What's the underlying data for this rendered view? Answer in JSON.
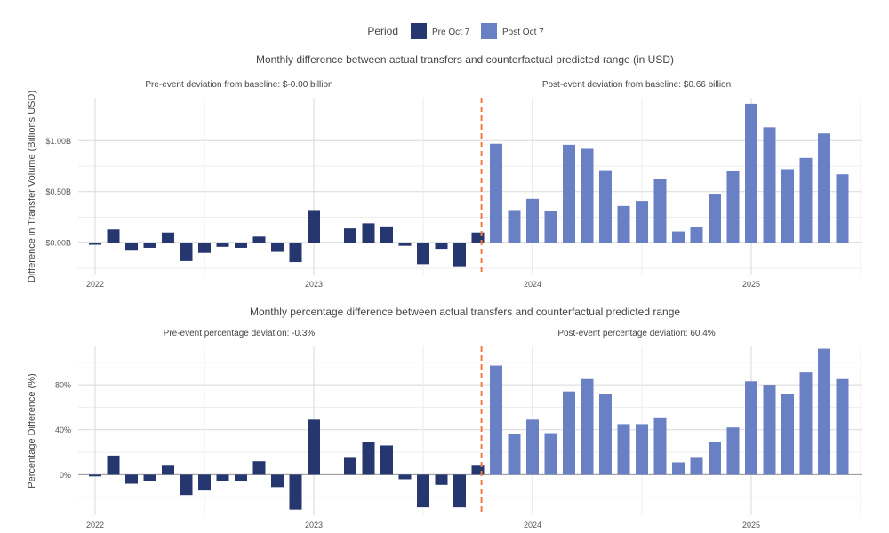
{
  "legend": {
    "title": "Period",
    "items": [
      {
        "label": "Pre Oct 7",
        "color": "#26366f"
      },
      {
        "label": "Post Oct 7",
        "color": "#6a80c4"
      }
    ]
  },
  "colors": {
    "pre": "#26366f",
    "post": "#6a80c4",
    "event_line": "#f07c45",
    "grid_major": "#d9d9d9",
    "grid_minor": "#ededed",
    "zero_line": "#999999"
  },
  "chart_data": [
    {
      "type": "bar",
      "title": "Monthly difference between actual transfers and counterfactual predicted range (in USD)",
      "ylabel": "Difference in Transfer Volume (Billions USD)",
      "pre_annotation": "Pre-event deviation from baseline: $-0.00 billion",
      "post_annotation": "Post-event deviation from baseline: $0.66 billion",
      "x_ticks": [
        "2022",
        "2023",
        "2024",
        "2025"
      ],
      "y_ticks": [
        {
          "value": 0,
          "label": "$0.00B"
        },
        {
          "value": 0.5,
          "label": "$0.50B"
        },
        {
          "value": 1.0,
          "label": "$1.00B"
        }
      ],
      "ylim": [
        -0.32,
        1.42
      ],
      "event_date": "2023-10-07",
      "x": [
        "2022-01",
        "2022-02",
        "2022-03",
        "2022-04",
        "2022-05",
        "2022-06",
        "2022-07",
        "2022-08",
        "2022-09",
        "2022-10",
        "2022-11",
        "2022-12",
        "2023-01",
        "2023-02",
        "2023-03",
        "2023-04",
        "2023-05",
        "2023-06",
        "2023-07",
        "2023-08",
        "2023-09",
        "2023-10",
        "2023-11",
        "2023-12",
        "2024-01",
        "2024-02",
        "2024-03",
        "2024-04",
        "2024-05",
        "2024-06",
        "2024-07",
        "2024-08",
        "2024-09",
        "2024-10",
        "2024-11",
        "2024-12",
        "2025-01",
        "2025-02",
        "2025-03",
        "2025-04",
        "2025-05",
        "2025-06"
      ],
      "values": [
        -0.02,
        0.13,
        -0.07,
        -0.05,
        0.1,
        -0.18,
        -0.1,
        -0.04,
        -0.05,
        0.06,
        -0.09,
        -0.19,
        0.32,
        0.0,
        0.14,
        0.19,
        0.16,
        -0.03,
        -0.21,
        -0.06,
        -0.23,
        0.1,
        0.97,
        0.32,
        0.43,
        0.31,
        0.96,
        0.92,
        0.71,
        0.36,
        0.41,
        0.62,
        0.11,
        0.15,
        0.48,
        0.7,
        1.36,
        1.13,
        0.72,
        0.83,
        1.07,
        0.67
      ],
      "period": [
        "pre",
        "pre",
        "pre",
        "pre",
        "pre",
        "pre",
        "pre",
        "pre",
        "pre",
        "pre",
        "pre",
        "pre",
        "pre",
        "pre",
        "pre",
        "pre",
        "pre",
        "pre",
        "pre",
        "pre",
        "pre",
        "pre",
        "post",
        "post",
        "post",
        "post",
        "post",
        "post",
        "post",
        "post",
        "post",
        "post",
        "post",
        "post",
        "post",
        "post",
        "post",
        "post",
        "post",
        "post",
        "post",
        "post"
      ]
    },
    {
      "type": "bar",
      "title": "Monthly percentage difference between actual transfers and counterfactual predicted range",
      "ylabel": "Percentage Difference (%)",
      "pre_annotation": "Pre-event percentage deviation: -0.3%",
      "post_annotation": "Post-event percentage deviation: 60.4%",
      "x_ticks": [
        "2022",
        "2023",
        "2024",
        "2025"
      ],
      "y_ticks": [
        {
          "value": 0,
          "label": "0%"
        },
        {
          "value": 40,
          "label": "40%"
        },
        {
          "value": 80,
          "label": "80%"
        }
      ],
      "ylim": [
        -36,
        114
      ],
      "event_date": "2023-10-07",
      "x": [
        "2022-01",
        "2022-02",
        "2022-03",
        "2022-04",
        "2022-05",
        "2022-06",
        "2022-07",
        "2022-08",
        "2022-09",
        "2022-10",
        "2022-11",
        "2022-12",
        "2023-01",
        "2023-02",
        "2023-03",
        "2023-04",
        "2023-05",
        "2023-06",
        "2023-07",
        "2023-08",
        "2023-09",
        "2023-10",
        "2023-11",
        "2023-12",
        "2024-01",
        "2024-02",
        "2024-03",
        "2024-04",
        "2024-05",
        "2024-06",
        "2024-07",
        "2024-08",
        "2024-09",
        "2024-10",
        "2024-11",
        "2024-12",
        "2025-01",
        "2025-02",
        "2025-03",
        "2025-04",
        "2025-05",
        "2025-06"
      ],
      "values": [
        -1.5,
        17,
        -8,
        -6,
        8,
        -18,
        -14,
        -6,
        -6,
        12,
        -11,
        -31,
        49,
        0,
        15,
        29,
        26,
        -4,
        -29,
        -9,
        -29,
        8,
        97,
        36,
        49,
        37,
        74,
        85,
        72,
        45,
        45,
        51,
        11,
        15,
        29,
        42,
        83,
        80,
        72,
        91,
        112,
        85
      ],
      "period": [
        "pre",
        "pre",
        "pre",
        "pre",
        "pre",
        "pre",
        "pre",
        "pre",
        "pre",
        "pre",
        "pre",
        "pre",
        "pre",
        "pre",
        "pre",
        "pre",
        "pre",
        "pre",
        "pre",
        "pre",
        "pre",
        "pre",
        "post",
        "post",
        "post",
        "post",
        "post",
        "post",
        "post",
        "post",
        "post",
        "post",
        "post",
        "post",
        "post",
        "post",
        "post",
        "post",
        "post",
        "post",
        "post",
        "post"
      ]
    }
  ]
}
